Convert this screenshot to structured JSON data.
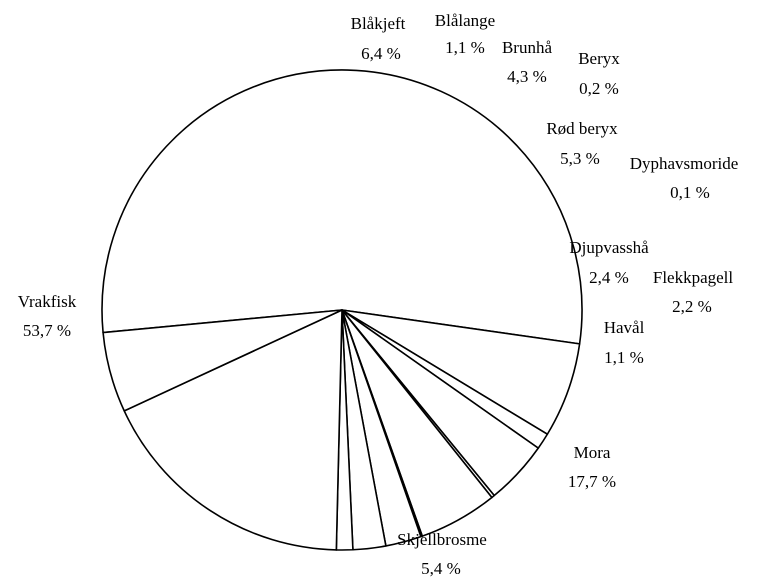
{
  "chart_data": {
    "type": "pie",
    "title": "",
    "slices": [
      {
        "label": "Vrakfisk",
        "value_text": "53,7 %",
        "value": 53.7
      },
      {
        "label": "Blåkjeft",
        "value_text": "6,4 %",
        "value": 6.4
      },
      {
        "label": "Blålange",
        "value_text": "1,1 %",
        "value": 1.1
      },
      {
        "label": "Brunhå",
        "value_text": "4,3 %",
        "value": 4.3
      },
      {
        "label": "Beryx",
        "value_text": "0,2 %",
        "value": 0.2
      },
      {
        "label": "Rød beryx",
        "value_text": "5,3 %",
        "value": 5.3
      },
      {
        "label": "Dyphavsmoride",
        "value_text": "0,1 %",
        "value": 0.1
      },
      {
        "label": "Djupvasshå",
        "value_text": "2,4 %",
        "value": 2.4
      },
      {
        "label": "Flekkpagell",
        "value_text": "2,2 %",
        "value": 2.2
      },
      {
        "label": "Havål",
        "value_text": "1,1 %",
        "value": 1.1
      },
      {
        "label": "Mora",
        "value_text": "17,7 %",
        "value": 17.7
      },
      {
        "label": "Skjellbrosme",
        "value_text": "5,4 %",
        "value": 5.4
      }
    ],
    "slice_fill": "#ffffff",
    "slice_stroke": "#000000",
    "legend": "none"
  }
}
